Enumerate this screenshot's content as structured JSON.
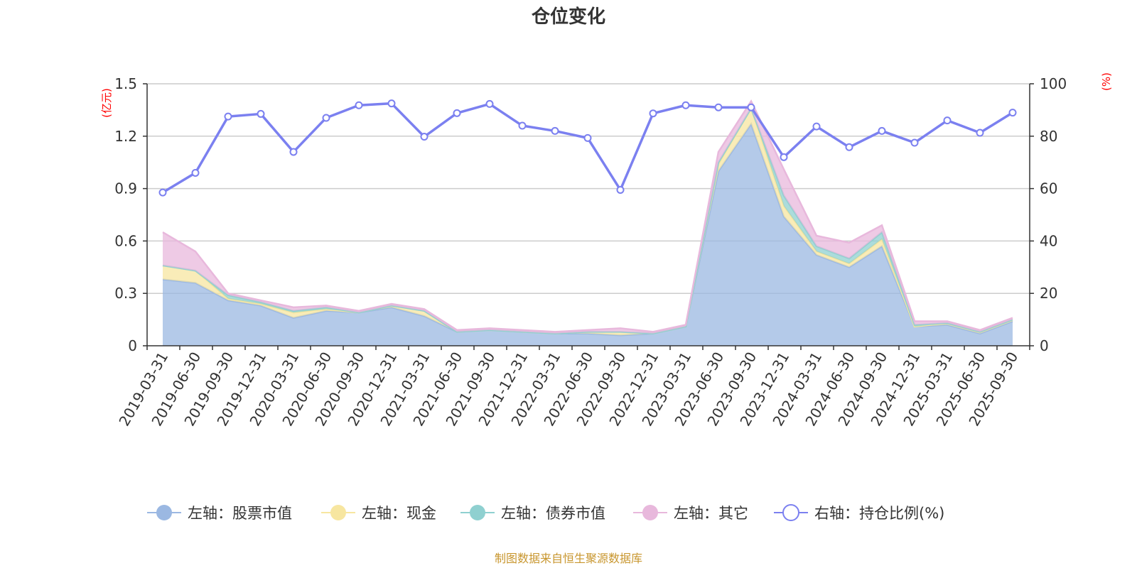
{
  "chart_data": {
    "type": "area",
    "title": "仓位变化",
    "source": "制图数据来自恒生聚源数据库",
    "left_axis": {
      "unit": "(亿元)",
      "ticks": [
        "0",
        "0.3",
        "0.6",
        "0.9",
        "1.2",
        "1.5"
      ],
      "range": [
        0,
        1.5
      ]
    },
    "right_axis": {
      "unit": "(%)",
      "ticks": [
        "0",
        "20",
        "40",
        "60",
        "80",
        "100"
      ],
      "range": [
        0,
        100
      ]
    },
    "x": [
      "2019-03-31",
      "2019-06-30",
      "2019-09-30",
      "2019-12-31",
      "2020-03-31",
      "2020-06-30",
      "2020-09-30",
      "2020-12-31",
      "2021-03-31",
      "2021-06-30",
      "2021-09-30",
      "2021-12-31",
      "2022-03-31",
      "2022-06-30",
      "2022-09-30",
      "2022-12-31",
      "2023-03-31",
      "2023-06-30",
      "2023-09-30",
      "2023-12-31",
      "2024-03-31",
      "2024-06-30",
      "2024-09-30",
      "2024-12-31",
      "2025-03-31",
      "2025-06-30",
      "2025-09-30"
    ],
    "series": [
      {
        "name": "左轴：股票市值",
        "axis": "left",
        "stack": true,
        "color": "#9bb8e2",
        "values": [
          0.38,
          0.36,
          0.26,
          0.23,
          0.16,
          0.2,
          0.19,
          0.22,
          0.17,
          0.08,
          0.09,
          0.08,
          0.07,
          0.07,
          0.06,
          0.07,
          0.11,
          1.0,
          1.27,
          0.74,
          0.52,
          0.45,
          0.57,
          0.11,
          0.12,
          0.07,
          0.14
        ]
      },
      {
        "name": "左轴：现金",
        "axis": "left",
        "stack": true,
        "color": "#f7e6a0",
        "values": [
          0.08,
          0.07,
          0.01,
          0.01,
          0.03,
          0.01,
          0.0,
          0.01,
          0.03,
          0.0,
          0.0,
          0.0,
          0.0,
          0.01,
          0.02,
          0.0,
          0.0,
          0.04,
          0.09,
          0.06,
          0.02,
          0.02,
          0.04,
          0.0,
          0.01,
          0.01,
          0.01
        ]
      },
      {
        "name": "左轴：债券市值",
        "axis": "left",
        "stack": true,
        "color": "#8fd0d0",
        "values": [
          0.0,
          0.0,
          0.02,
          0.01,
          0.01,
          0.01,
          0.0,
          0.0,
          0.0,
          0.0,
          0.0,
          0.0,
          0.0,
          0.0,
          0.0,
          0.0,
          0.0,
          0.01,
          0.0,
          0.06,
          0.03,
          0.03,
          0.04,
          0.01,
          0.0,
          0.0,
          0.0
        ]
      },
      {
        "name": "左轴：其它",
        "axis": "left",
        "stack": true,
        "color": "#e8b8dc",
        "values": [
          0.19,
          0.11,
          0.01,
          0.01,
          0.02,
          0.01,
          0.01,
          0.01,
          0.01,
          0.01,
          0.01,
          0.01,
          0.01,
          0.01,
          0.02,
          0.01,
          0.01,
          0.06,
          0.04,
          0.15,
          0.06,
          0.09,
          0.04,
          0.02,
          0.01,
          0.01,
          0.01
        ]
      },
      {
        "name": "右轴：持仓比例(%)",
        "axis": "right",
        "stack": false,
        "color": "#7b80f0",
        "values": [
          58.5,
          66.0,
          87.5,
          88.5,
          74.0,
          87.0,
          91.8,
          92.5,
          79.8,
          88.8,
          92.3,
          84.0,
          82.0,
          79.3,
          59.5,
          88.7,
          91.8,
          91.0,
          91.0,
          72.0,
          83.7,
          75.8,
          82.0,
          77.5,
          86.0,
          81.3,
          89.0
        ]
      }
    ]
  }
}
